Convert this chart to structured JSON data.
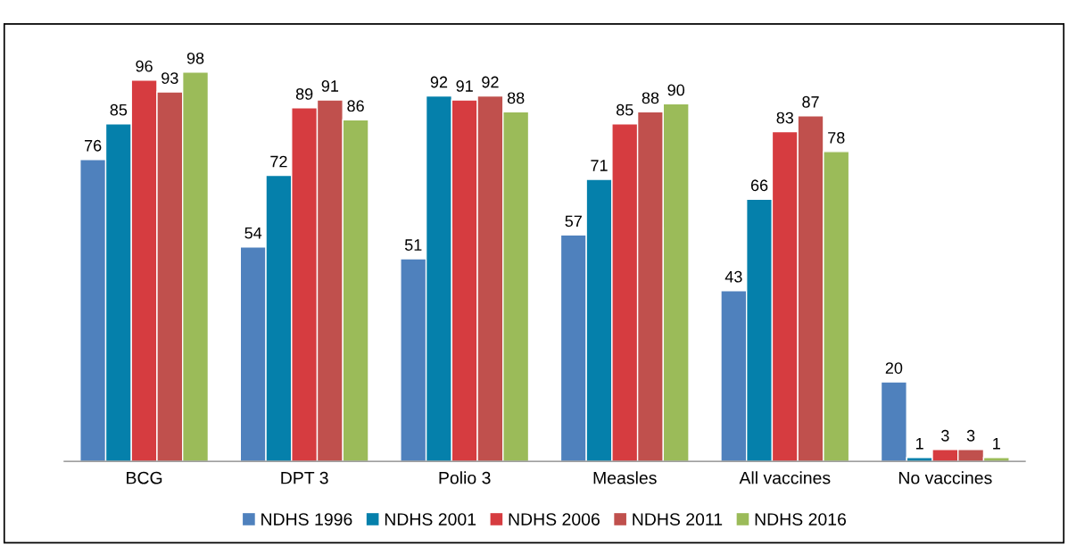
{
  "chart_data": {
    "type": "bar",
    "categories": [
      "BCG",
      "DPT 3",
      "Polio 3",
      "Measles",
      "All vaccines",
      "No vaccines"
    ],
    "series": [
      {
        "name": "NDHS 1996",
        "color": "#4f81bd",
        "values": [
          76,
          54,
          51,
          57,
          43,
          20
        ]
      },
      {
        "name": "NDHS 2001",
        "color": "#0580ab",
        "values": [
          85,
          72,
          92,
          71,
          66,
          1
        ]
      },
      {
        "name": "NDHS 2006",
        "color": "#d63c40",
        "values": [
          96,
          89,
          91,
          85,
          83,
          3
        ]
      },
      {
        "name": "NDHS 2011",
        "color": "#c0504d",
        "values": [
          93,
          91,
          92,
          88,
          87,
          3
        ]
      },
      {
        "name": "NDHS 2016",
        "color": "#9bbb59",
        "values": [
          98,
          86,
          88,
          90,
          78,
          1
        ]
      }
    ],
    "data_labels": true,
    "legend": "bottom",
    "grid": false
  }
}
